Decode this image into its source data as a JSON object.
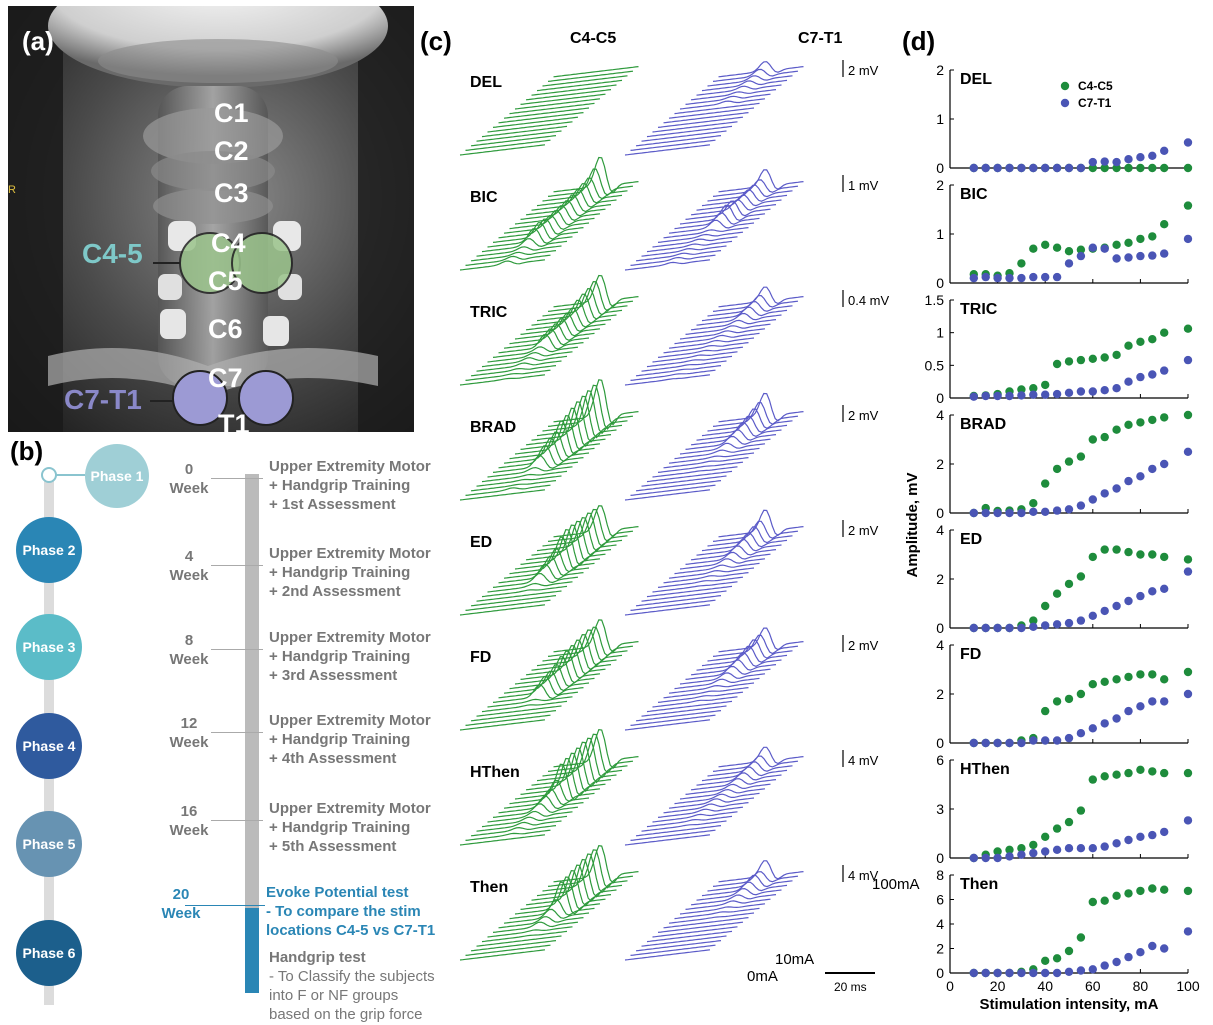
{
  "panel_a": {
    "label": "(a)",
    "side_marker": "R",
    "vertebrae": [
      "C1",
      "C2",
      "C3",
      "C4",
      "C5",
      "C6",
      "C7",
      "T1"
    ],
    "site_labels": [
      "C4-5",
      "C7-T1"
    ],
    "colors": {
      "c45": "#7ec8c8",
      "c7t1": "#8a88c8",
      "green_circle": "#9bc48c",
      "purple_circle": "#9c9ad4"
    }
  },
  "panel_b": {
    "label": "(b)",
    "phases": [
      {
        "label": "Phase 1",
        "color": "#9fcfd6"
      },
      {
        "label": "Phase 2",
        "color": "#2a86b5"
      },
      {
        "label": "Phase 3",
        "color": "#5bbcc8"
      },
      {
        "label": "Phase 4",
        "color": "#2f5a9e"
      },
      {
        "label": "Phase 5",
        "color": "#6793b2"
      },
      {
        "label": "Phase 6",
        "color": "#1c5f8c"
      }
    ],
    "milestones": [
      {
        "week_num": "0",
        "week_word": "Week",
        "lines": [
          "Upper Extremity Motor",
          "+ Handgrip Training",
          "+ 1st Assessment"
        ]
      },
      {
        "week_num": "4",
        "week_word": "Week",
        "lines": [
          "Upper Extremity Motor",
          "+ Handgrip Training",
          "+ 2nd Assessment"
        ]
      },
      {
        "week_num": "8",
        "week_word": "Week",
        "lines": [
          "Upper Extremity Motor",
          "+ Handgrip Training",
          "+ 3rd Assessment"
        ]
      },
      {
        "week_num": "12",
        "week_word": "Week",
        "lines": [
          "Upper Extremity Motor",
          "+ Handgrip Training",
          "+ 4th Assessment"
        ]
      },
      {
        "week_num": "16",
        "week_word": "Week",
        "lines": [
          "Upper Extremity Motor",
          "+ Handgrip Training",
          "+ 5th Assessment"
        ]
      }
    ],
    "final": {
      "week_num": "20",
      "week_word": "Week",
      "evoke_lines": [
        "Evoke Potential test",
        "- To compare the stim",
        "locations C4-5 vs C7-T1"
      ],
      "handgrip_title": "Handgrip test",
      "handgrip_lines": [
        "- To Classify the subjects",
        "into F or NF groups",
        "based on the grip force"
      ]
    },
    "colors": {
      "bar_gray": "#bbbbbb",
      "bar_blue": "#2a86b5",
      "text_gray": "#777777",
      "text_blue": "#2a86b5",
      "track": "#dcdcdc"
    }
  },
  "panel_c": {
    "label": "(c)",
    "col_headers": [
      "C4-C5",
      "C7-T1"
    ],
    "muscles": [
      {
        "name": "DEL",
        "scale": "2 mV"
      },
      {
        "name": "BIC",
        "scale": "1 mV"
      },
      {
        "name": "TRIC",
        "scale": "0.4 mV"
      },
      {
        "name": "BRAD",
        "scale": "2 mV"
      },
      {
        "name": "ED",
        "scale": "2 mV"
      },
      {
        "name": "FD",
        "scale": "2 mV"
      },
      {
        "name": "HThen",
        "scale": "4 mV"
      },
      {
        "name": "Then",
        "scale": "4 mV"
      }
    ],
    "top_intensity_label": "100mA",
    "low_intensity_label": "10mA",
    "zero_label": "0mA",
    "time_scale": "20 ms",
    "colors": {
      "c45": "#2e9a3c",
      "c7t1": "#5b5bc8"
    }
  },
  "chart_data": {
    "type": "scatter",
    "label": "(d)",
    "xlabel": "Stimulation intensity, mA",
    "ylabel": "Amplitude, mV",
    "legend": [
      "C4-C5",
      "C7-T1"
    ],
    "legend_position": "top-right of first subplot",
    "colors": {
      "C4-C5": "#1e8c3c",
      "C7-T1": "#4a55b5"
    },
    "x": [
      10,
      15,
      20,
      25,
      30,
      35,
      40,
      45,
      50,
      55,
      60,
      65,
      70,
      75,
      80,
      85,
      90,
      100
    ],
    "xlim": [
      0,
      100
    ],
    "xticks": [
      0,
      20,
      40,
      60,
      80,
      100
    ],
    "subplots": [
      {
        "name": "DEL",
        "ylim": [
          0,
          2
        ],
        "yticks": [
          0,
          1,
          2
        ],
        "series": [
          {
            "name": "C4-C5",
            "values": [
              0,
              0,
              0,
              0,
              0,
              0,
              0,
              0,
              0,
              0,
              0,
              0,
              0,
              0,
              0,
              0,
              0,
              0
            ]
          },
          {
            "name": "C7-T1",
            "values": [
              0,
              0,
              0,
              0,
              0,
              0,
              0,
              0,
              0,
              0,
              0.12,
              0.13,
              0.12,
              0.18,
              0.22,
              0.25,
              0.35,
              0.52
            ]
          }
        ]
      },
      {
        "name": "BIC",
        "ylim": [
          0,
          2
        ],
        "yticks": [
          0,
          1,
          2
        ],
        "series": [
          {
            "name": "C4-C5",
            "values": [
              0.18,
              0.18,
              0.15,
              0.2,
              0.4,
              0.7,
              0.78,
              0.72,
              0.65,
              0.68,
              0.7,
              0.72,
              0.78,
              0.82,
              0.9,
              0.95,
              1.2,
              1.58
            ]
          },
          {
            "name": "C7-T1",
            "values": [
              0.1,
              0.12,
              0.1,
              0.1,
              0.1,
              0.12,
              0.12,
              0.12,
              0.4,
              0.55,
              0.72,
              0.7,
              0.5,
              0.52,
              0.55,
              0.56,
              0.6,
              0.9
            ]
          }
        ]
      },
      {
        "name": "TRIC",
        "ylim": [
          0,
          1.5
        ],
        "yticks": [
          0,
          0.5,
          1,
          1.5
        ],
        "series": [
          {
            "name": "C4-C5",
            "values": [
              0.03,
              0.04,
              0.06,
              0.1,
              0.13,
              0.15,
              0.2,
              0.52,
              0.56,
              0.58,
              0.6,
              0.62,
              0.66,
              0.8,
              0.86,
              0.9,
              1.0,
              1.06
            ]
          },
          {
            "name": "C7-T1",
            "values": [
              0.02,
              0.03,
              0.03,
              0.03,
              0.04,
              0.05,
              0.05,
              0.06,
              0.08,
              0.1,
              0.1,
              0.12,
              0.15,
              0.25,
              0.32,
              0.36,
              0.42,
              0.58
            ]
          }
        ]
      },
      {
        "name": "BRAD",
        "ylim": [
          0,
          4
        ],
        "yticks": [
          0,
          2,
          4
        ],
        "series": [
          {
            "name": "C4-C5",
            "values": [
              0,
              0.2,
              0.08,
              0.1,
              0.15,
              0.4,
              1.2,
              1.8,
              2.1,
              2.3,
              3.0,
              3.1,
              3.4,
              3.6,
              3.7,
              3.8,
              3.9,
              4.0
            ]
          },
          {
            "name": "C7-T1",
            "values": [
              0,
              0,
              0,
              0,
              0,
              0.05,
              0.05,
              0.1,
              0.15,
              0.3,
              0.55,
              0.8,
              1.0,
              1.3,
              1.5,
              1.8,
              2.0,
              2.5
            ]
          }
        ]
      },
      {
        "name": "ED",
        "ylim": [
          0,
          4
        ],
        "yticks": [
          0,
          2,
          4
        ],
        "series": [
          {
            "name": "C4-C5",
            "values": [
              0,
              0,
              0,
              0,
              0.1,
              0.3,
              0.9,
              1.4,
              1.8,
              2.1,
              2.9,
              3.2,
              3.2,
              3.1,
              3.0,
              3.0,
              2.9,
              2.8
            ]
          },
          {
            "name": "C7-T1",
            "values": [
              0,
              0,
              0,
              0,
              0,
              0.05,
              0.1,
              0.15,
              0.2,
              0.3,
              0.5,
              0.7,
              0.9,
              1.1,
              1.3,
              1.5,
              1.6,
              2.3
            ]
          }
        ]
      },
      {
        "name": "FD",
        "ylim": [
          0,
          4
        ],
        "yticks": [
          0,
          2,
          4
        ],
        "series": [
          {
            "name": "C4-C5",
            "values": [
              0,
              0,
              0,
              0,
              0.1,
              0.2,
              1.3,
              1.7,
              1.8,
              2.0,
              2.4,
              2.5,
              2.6,
              2.7,
              2.8,
              2.8,
              2.6,
              2.9
            ]
          },
          {
            "name": "C7-T1",
            "values": [
              0,
              0,
              0,
              0,
              0,
              0.1,
              0.1,
              0.1,
              0.2,
              0.4,
              0.6,
              0.8,
              1.0,
              1.3,
              1.5,
              1.7,
              1.7,
              2.0
            ]
          }
        ]
      },
      {
        "name": "HThen",
        "ylim": [
          0,
          6
        ],
        "yticks": [
          0,
          3,
          6
        ],
        "series": [
          {
            "name": "C4-C5",
            "values": [
              0,
              0.2,
              0.4,
              0.5,
              0.6,
              0.8,
              1.3,
              1.8,
              2.2,
              2.9,
              4.8,
              5.0,
              5.1,
              5.2,
              5.4,
              5.3,
              5.2,
              5.2
            ]
          },
          {
            "name": "C7-T1",
            "values": [
              0,
              0,
              0,
              0.1,
              0.2,
              0.3,
              0.4,
              0.5,
              0.6,
              0.6,
              0.6,
              0.7,
              0.9,
              1.1,
              1.3,
              1.4,
              1.6,
              2.3
            ]
          }
        ]
      },
      {
        "name": "Then",
        "ylim": [
          0,
          8
        ],
        "yticks": [
          0,
          2,
          4,
          6,
          8
        ],
        "series": [
          {
            "name": "C4-C5",
            "values": [
              0,
              0,
              0,
              0,
              0.1,
              0.3,
              1.0,
              1.2,
              1.8,
              2.9,
              5.8,
              5.9,
              6.3,
              6.5,
              6.7,
              6.9,
              6.8,
              6.7
            ]
          },
          {
            "name": "C7-T1",
            "values": [
              0,
              0,
              0,
              0,
              0,
              0,
              0,
              0,
              0.1,
              0.2,
              0.3,
              0.6,
              0.9,
              1.3,
              1.7,
              2.2,
              2.0,
              3.4
            ]
          }
        ]
      }
    ]
  }
}
